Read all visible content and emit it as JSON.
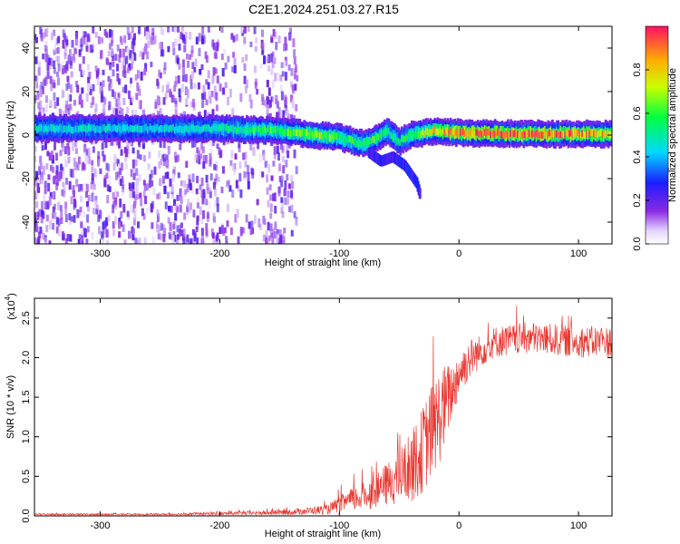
{
  "title": "C2E1.2024.251.03.27.R15",
  "chart_data": [
    {
      "type": "heatmap",
      "xlabel": "Height of straight line (km)",
      "ylabel": "Frequency (Hz)",
      "xlim": [
        -355,
        128
      ],
      "ylim": [
        -50,
        50
      ],
      "xticks": [
        -300,
        -200,
        -100,
        0,
        100
      ],
      "xtick_labels": [
        "-300",
        "-200",
        "-100",
        "0",
        "100"
      ],
      "yticks": [
        -40,
        -20,
        0,
        20,
        40
      ],
      "ytick_labels": [
        "-40",
        "-20",
        "0",
        "20",
        "40"
      ],
      "colorbar": {
        "label": "Normalized spectral amplitude",
        "range": [
          0,
          1
        ],
        "ticks": [
          0.0,
          0.2,
          0.4,
          0.6,
          0.8
        ],
        "tick_labels": [
          "0.0",
          "0.2",
          "0.4",
          "0.6",
          "0.8"
        ],
        "colormap": "rainbow (white-violet-blue-cyan-green-yellow-red)"
      },
      "ridge": {
        "description": "main spectral line near 0 Hz",
        "x": [
          -355,
          -300,
          -250,
          -200,
          -150,
          -120,
          -100,
          -80,
          -70,
          -60,
          -50,
          -40,
          -20,
          0,
          50,
          100,
          128
        ],
        "freq": [
          3,
          3,
          3,
          3,
          2,
          0,
          -1,
          -4,
          -2,
          2,
          -3,
          0,
          2,
          1,
          0.5,
          0.5,
          0.5
        ],
        "peak_amplitude": [
          0.45,
          0.45,
          0.45,
          0.5,
          0.6,
          0.7,
          0.6,
          0.55,
          0.6,
          0.55,
          0.5,
          0.6,
          0.75,
          0.9,
          0.9,
          0.85,
          0.8
        ]
      },
      "secondary_branch": {
        "description": "branch descending from main line",
        "x": [
          -75,
          -65,
          -55,
          -45,
          -40,
          -35,
          -32
        ],
        "freq": [
          -8,
          -12,
          -10,
          -14,
          -18,
          -22,
          -28
        ]
      },
      "noise_region_x": [
        -355,
        -135
      ]
    },
    {
      "type": "line",
      "xlabel": "Height of straight line (km)",
      "ylabel": "SNR (10 * v/v)",
      "yscale_label": "(x10",
      "yscale_exponent": "4",
      "xlim": [
        -355,
        128
      ],
      "ylim": [
        0,
        2.75
      ],
      "xticks": [
        -300,
        -200,
        -100,
        0,
        100
      ],
      "xtick_labels": [
        "-300",
        "-200",
        "-100",
        "0",
        "100"
      ],
      "yticks": [
        0.0,
        0.5,
        1.0,
        1.5,
        2.0,
        2.5
      ],
      "ytick_labels": [
        "0.0",
        "0.5",
        "1.0",
        "1.5",
        "2.0",
        "2.5"
      ],
      "series": [
        {
          "color": "#e83a32",
          "envelope": {
            "x": [
              -355,
              -250,
              -150,
              -110,
              -90,
              -70,
              -50,
              -35,
              -25,
              -15,
              -5,
              0,
              10,
              20,
              30,
              60,
              100,
              128
            ],
            "mean": [
              0.02,
              0.02,
              0.04,
              0.08,
              0.2,
              0.3,
              0.5,
              0.7,
              1.0,
              1.3,
              1.6,
              1.8,
              2.0,
              2.1,
              2.2,
              2.25,
              2.2,
              2.2
            ],
            "spread": [
              0.01,
              0.01,
              0.03,
              0.06,
              0.15,
              0.2,
              0.35,
              0.5,
              0.6,
              0.6,
              0.35,
              0.3,
              0.25,
              0.2,
              0.2,
              0.2,
              0.2,
              0.2
            ]
          }
        }
      ]
    }
  ]
}
